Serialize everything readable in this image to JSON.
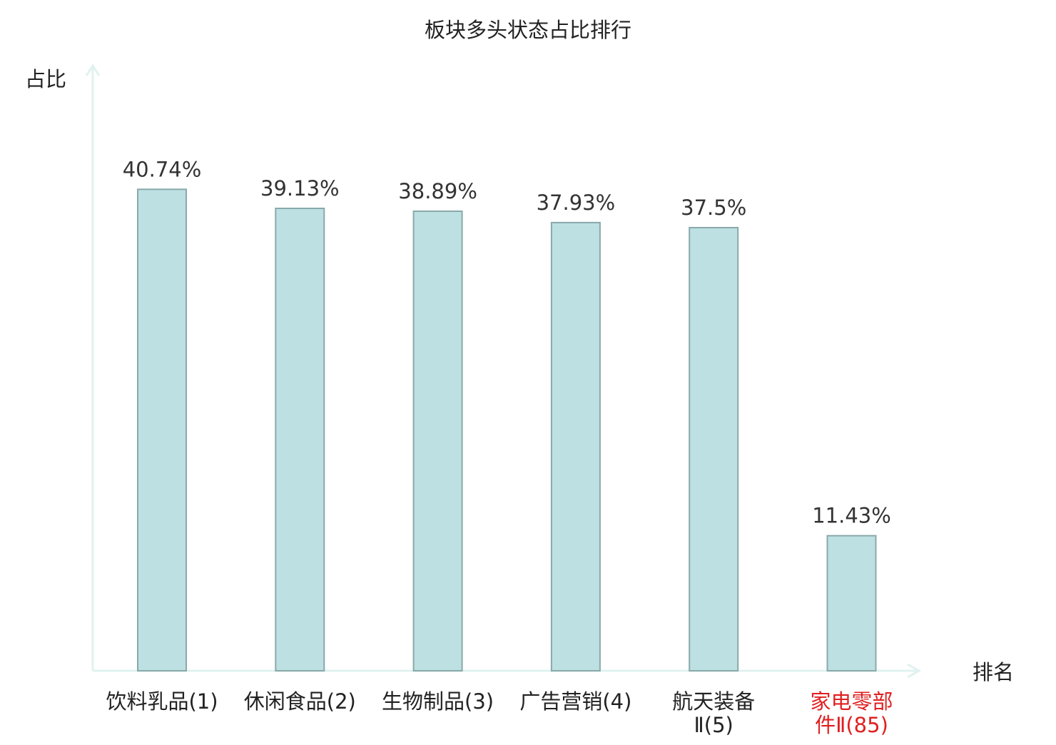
{
  "chart_data": {
    "type": "bar",
    "title": "板块多头状态占比排行",
    "ylabel": "占比",
    "xlabel": "排名",
    "ylim": [
      0,
      50
    ],
    "grid": false,
    "legend": "none",
    "categories": [
      {
        "lines": [
          "饮料乳品(1)"
        ],
        "highlight": false
      },
      {
        "lines": [
          "休闲食品(2)"
        ],
        "highlight": false
      },
      {
        "lines": [
          "生物制品(3)"
        ],
        "highlight": false
      },
      {
        "lines": [
          "广告营销(4)"
        ],
        "highlight": false
      },
      {
        "lines": [
          "航天装备",
          "Ⅱ(5)"
        ],
        "highlight": false
      },
      {
        "lines": [
          "家电零部",
          "件Ⅱ(85)"
        ],
        "highlight": true
      }
    ],
    "values": [
      40.74,
      39.13,
      38.89,
      37.93,
      37.5,
      11.43
    ],
    "value_labels": [
      "40.74%",
      "39.13%",
      "38.89%",
      "37.93%",
      "37.5%",
      "11.43%"
    ]
  },
  "colors": {
    "bar_fill": "#bde0e3",
    "bar_stroke": "#8aa9aa",
    "axis": "#e0f2ef",
    "text": "#222222",
    "value_text": "#333333",
    "highlight_text": "#e02020"
  }
}
